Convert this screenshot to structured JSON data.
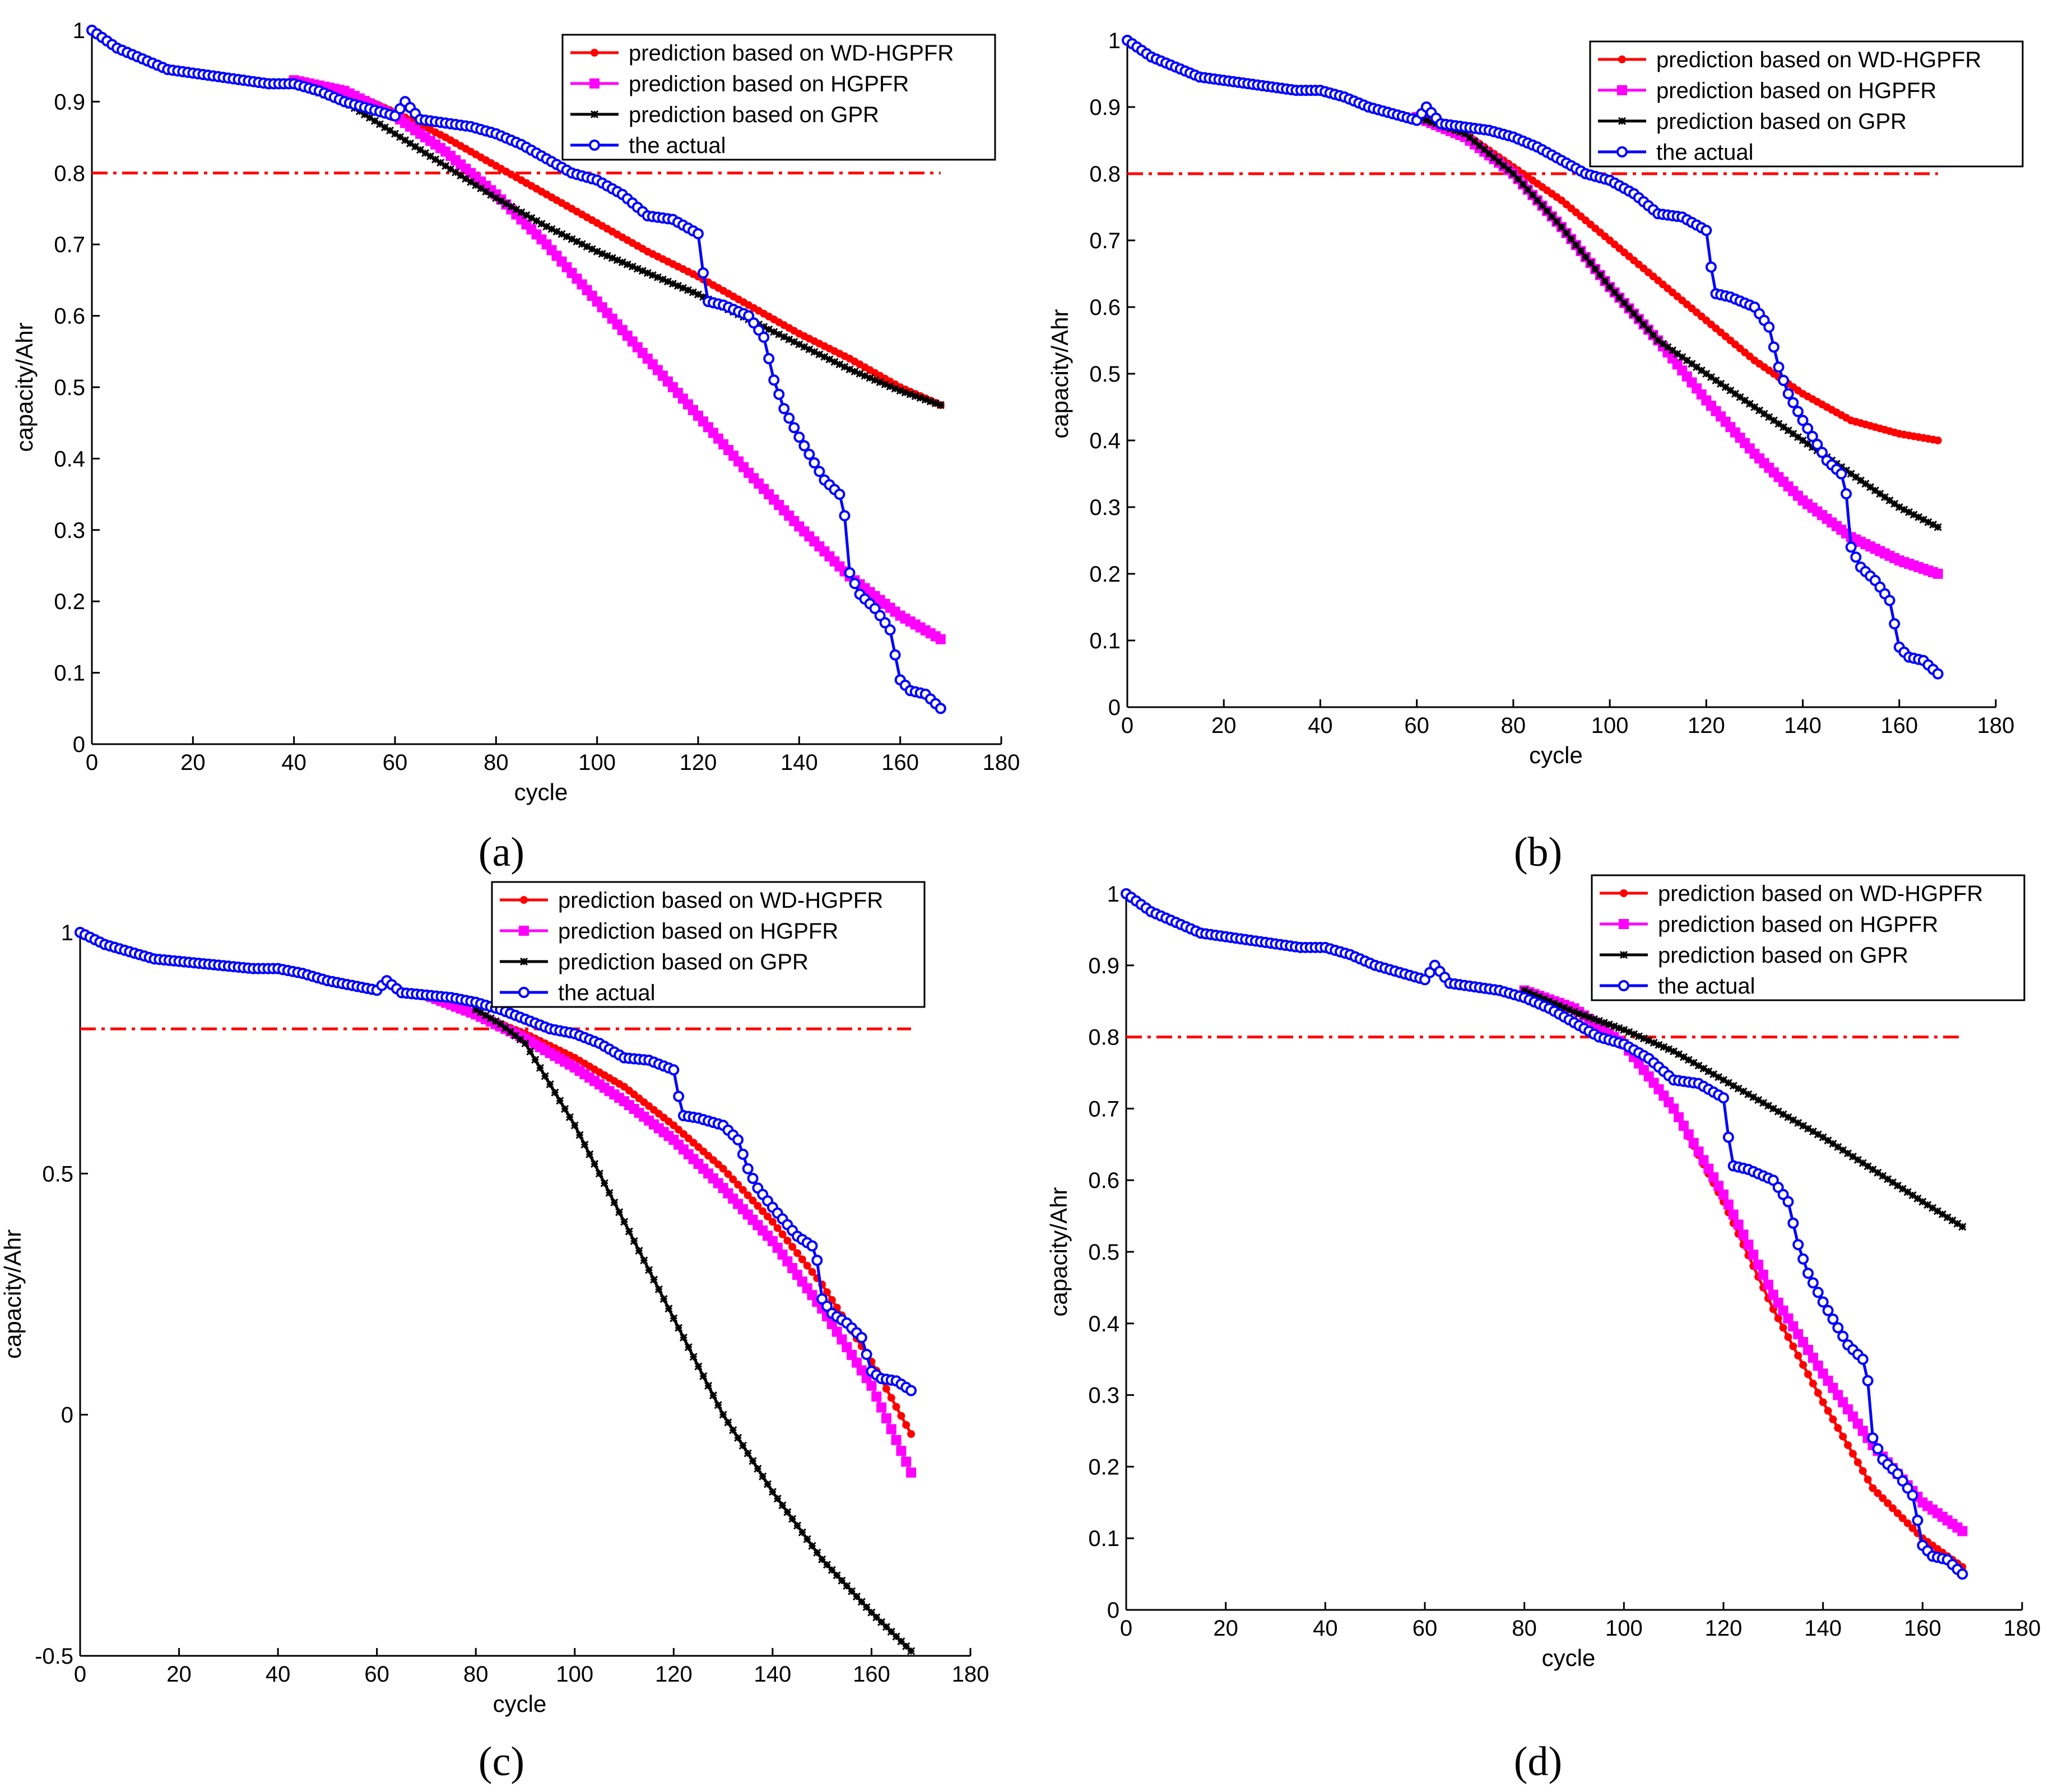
{
  "figure": {
    "panel_labels": [
      "(a)",
      "(b)",
      "(c)",
      "(d)"
    ]
  },
  "colors": {
    "wd_hgpfr": "#ff0000",
    "hgpfr": "#ff00ff",
    "gpr": "#000000",
    "actual": "#0000ff",
    "threshold": "#ff0000"
  },
  "chart_data": [
    {
      "panel": "(a)",
      "type": "line",
      "xlabel": "cycle",
      "ylabel": "capacity/Ahr",
      "xlim": [
        0,
        180
      ],
      "ylim": [
        0,
        1
      ],
      "xticks": [
        0,
        20,
        40,
        60,
        80,
        100,
        120,
        140,
        160,
        180
      ],
      "yticks": [
        0,
        0.1,
        0.2,
        0.3,
        0.4,
        0.5,
        0.6,
        0.7,
        0.8,
        0.9,
        1
      ],
      "ytick_labels": [
        "0",
        "0.1",
        "0.2",
        "0.3",
        "0.4",
        "0.5",
        "0.6",
        "0.7",
        "0.8",
        "0.9",
        "1"
      ],
      "threshold": {
        "y": 0.8,
        "x_range": [
          0,
          168
        ]
      },
      "legend_position": "top-right",
      "series": [
        {
          "key": "wd_hgpfr",
          "name": "prediction based on WD-HGPFR",
          "marker": "dot",
          "x": [
            40,
            50,
            60,
            70,
            80,
            90,
            100,
            110,
            120,
            130,
            140,
            150,
            160,
            168
          ],
          "y": [
            0.93,
            0.915,
            0.885,
            0.85,
            0.81,
            0.77,
            0.73,
            0.69,
            0.655,
            0.615,
            0.575,
            0.54,
            0.5,
            0.475
          ]
        },
        {
          "key": "hgpfr",
          "name": "prediction based on HGPFR",
          "marker": "square",
          "x": [
            40,
            50,
            60,
            70,
            80,
            90,
            100,
            110,
            120,
            130,
            140,
            150,
            160,
            168
          ],
          "y": [
            0.93,
            0.915,
            0.88,
            0.83,
            0.77,
            0.7,
            0.62,
            0.54,
            0.46,
            0.38,
            0.305,
            0.235,
            0.18,
            0.147
          ]
        },
        {
          "key": "gpr",
          "name": "prediction based on GPR",
          "marker": "star",
          "x": [
            40,
            50,
            60,
            70,
            80,
            90,
            100,
            110,
            120,
            130,
            140,
            150,
            160,
            168
          ],
          "y": [
            0.925,
            0.9,
            0.855,
            0.81,
            0.765,
            0.725,
            0.69,
            0.66,
            0.63,
            0.595,
            0.56,
            0.525,
            0.495,
            0.475
          ]
        },
        {
          "key": "actual",
          "name": "the actual",
          "marker": "circle",
          "x": [
            0,
            5,
            10,
            15,
            20,
            25,
            30,
            35,
            40,
            45,
            50,
            55,
            60,
            62,
            65,
            70,
            75,
            80,
            85,
            90,
            95,
            100,
            105,
            110,
            115,
            120,
            121,
            122,
            125,
            130,
            133,
            135,
            137,
            140,
            145,
            148,
            149,
            150,
            152,
            155,
            158,
            160,
            162,
            165,
            168
          ],
          "y": [
            1.0,
            0.975,
            0.96,
            0.945,
            0.94,
            0.935,
            0.93,
            0.925,
            0.925,
            0.915,
            0.9,
            0.89,
            0.88,
            0.9,
            0.875,
            0.87,
            0.865,
            0.855,
            0.84,
            0.82,
            0.8,
            0.79,
            0.77,
            0.74,
            0.735,
            0.715,
            0.66,
            0.62,
            0.615,
            0.6,
            0.57,
            0.51,
            0.47,
            0.43,
            0.37,
            0.35,
            0.32,
            0.24,
            0.21,
            0.19,
            0.16,
            0.09,
            0.075,
            0.07,
            0.05
          ]
        }
      ]
    },
    {
      "panel": "(b)",
      "type": "line",
      "xlabel": "cycle",
      "ylabel": "capacity/Ahr",
      "xlim": [
        0,
        180
      ],
      "ylim": [
        0,
        1
      ],
      "xticks": [
        0,
        20,
        40,
        60,
        80,
        100,
        120,
        140,
        160,
        180
      ],
      "yticks": [
        0,
        0.1,
        0.2,
        0.3,
        0.4,
        0.5,
        0.6,
        0.7,
        0.8,
        0.9,
        1
      ],
      "ytick_labels": [
        "0",
        "0.1",
        "0.2",
        "0.3",
        "0.4",
        "0.5",
        "0.6",
        "0.7",
        "0.8",
        "0.9",
        "1"
      ],
      "threshold": {
        "y": 0.8,
        "x_range": [
          0,
          168
        ]
      },
      "legend_position": "top-right",
      "series": [
        {
          "key": "wd_hgpfr",
          "name": "prediction based on WD-HGPFR",
          "marker": "dot",
          "x": [
            60,
            70,
            80,
            90,
            100,
            110,
            120,
            130,
            140,
            150,
            160,
            168
          ],
          "y": [
            0.885,
            0.86,
            0.81,
            0.76,
            0.7,
            0.64,
            0.58,
            0.52,
            0.47,
            0.43,
            0.41,
            0.4
          ]
        },
        {
          "key": "hgpfr",
          "name": "prediction based on HGPFR",
          "marker": "square",
          "x": [
            60,
            70,
            80,
            90,
            100,
            110,
            120,
            130,
            140,
            150,
            160,
            168
          ],
          "y": [
            0.885,
            0.855,
            0.8,
            0.72,
            0.63,
            0.55,
            0.46,
            0.38,
            0.31,
            0.255,
            0.22,
            0.2
          ]
        },
        {
          "key": "gpr",
          "name": "prediction based on GPR",
          "marker": "star",
          "x": [
            60,
            70,
            80,
            90,
            100,
            110,
            120,
            130,
            140,
            150,
            160,
            168
          ],
          "y": [
            0.885,
            0.86,
            0.8,
            0.72,
            0.63,
            0.55,
            0.5,
            0.45,
            0.4,
            0.35,
            0.3,
            0.27
          ]
        },
        {
          "key": "actual",
          "name": "the actual",
          "marker": "circle",
          "x": [
            0,
            5,
            10,
            15,
            20,
            25,
            30,
            35,
            40,
            45,
            50,
            55,
            60,
            62,
            65,
            70,
            75,
            80,
            85,
            90,
            95,
            100,
            105,
            110,
            115,
            120,
            121,
            122,
            125,
            130,
            133,
            135,
            137,
            140,
            145,
            148,
            149,
            150,
            152,
            155,
            158,
            160,
            162,
            165,
            168
          ],
          "y": [
            1.0,
            0.975,
            0.96,
            0.945,
            0.94,
            0.935,
            0.93,
            0.925,
            0.925,
            0.915,
            0.9,
            0.89,
            0.88,
            0.9,
            0.875,
            0.87,
            0.865,
            0.855,
            0.84,
            0.82,
            0.8,
            0.79,
            0.77,
            0.74,
            0.735,
            0.715,
            0.66,
            0.62,
            0.615,
            0.6,
            0.57,
            0.51,
            0.47,
            0.43,
            0.37,
            0.35,
            0.32,
            0.24,
            0.21,
            0.19,
            0.16,
            0.09,
            0.075,
            0.07,
            0.05
          ]
        }
      ]
    },
    {
      "panel": "(c)",
      "type": "line",
      "xlabel": "cycle",
      "ylabel": "capacity/Ahr",
      "xlim": [
        0,
        180
      ],
      "ylim": [
        -0.5,
        1
      ],
      "xticks": [
        0,
        20,
        40,
        60,
        80,
        100,
        120,
        140,
        160,
        180
      ],
      "yticks": [
        -0.5,
        0,
        0.5,
        1
      ],
      "ytick_labels": [
        "-0.5",
        "0",
        "0.5",
        "1"
      ],
      "threshold": {
        "y": 0.8,
        "x_range": [
          0,
          168
        ]
      },
      "legend_position": "top-right",
      "series": [
        {
          "key": "wd_hgpfr",
          "name": "prediction based on WD-HGPFR",
          "marker": "dot",
          "x": [
            70,
            80,
            90,
            100,
            110,
            120,
            130,
            140,
            150,
            160,
            168
          ],
          "y": [
            0.87,
            0.83,
            0.79,
            0.74,
            0.68,
            0.6,
            0.51,
            0.4,
            0.27,
            0.11,
            -0.04
          ]
        },
        {
          "key": "hgpfr",
          "name": "prediction based on HGPFR",
          "marker": "square",
          "x": [
            70,
            80,
            90,
            100,
            110,
            120,
            130,
            140,
            150,
            160,
            168
          ],
          "y": [
            0.87,
            0.83,
            0.78,
            0.72,
            0.65,
            0.57,
            0.47,
            0.36,
            0.22,
            0.06,
            -0.12
          ]
        },
        {
          "key": "gpr",
          "name": "prediction based on GPR",
          "marker": "star",
          "x": [
            80,
            85,
            90,
            100,
            110,
            120,
            130,
            140,
            150,
            160,
            168
          ],
          "y": [
            0.84,
            0.81,
            0.77,
            0.6,
            0.4,
            0.2,
            0.0,
            -0.16,
            -0.3,
            -0.41,
            -0.49
          ]
        },
        {
          "key": "actual",
          "name": "the actual",
          "marker": "circle",
          "x": [
            0,
            5,
            10,
            15,
            20,
            25,
            30,
            35,
            40,
            45,
            50,
            55,
            60,
            62,
            65,
            70,
            75,
            80,
            85,
            90,
            95,
            100,
            105,
            110,
            115,
            120,
            121,
            122,
            125,
            130,
            133,
            135,
            137,
            140,
            145,
            148,
            149,
            150,
            152,
            155,
            158,
            160,
            162,
            165,
            168
          ],
          "y": [
            1.0,
            0.975,
            0.96,
            0.945,
            0.94,
            0.935,
            0.93,
            0.925,
            0.925,
            0.915,
            0.9,
            0.89,
            0.88,
            0.9,
            0.875,
            0.87,
            0.865,
            0.855,
            0.84,
            0.82,
            0.8,
            0.79,
            0.77,
            0.74,
            0.735,
            0.715,
            0.66,
            0.62,
            0.615,
            0.6,
            0.57,
            0.51,
            0.47,
            0.43,
            0.37,
            0.35,
            0.32,
            0.24,
            0.21,
            0.19,
            0.16,
            0.09,
            0.075,
            0.07,
            0.05
          ]
        }
      ]
    },
    {
      "panel": "(d)",
      "type": "line",
      "xlabel": "cycle",
      "ylabel": "capacity/Ahr",
      "xlim": [
        0,
        180
      ],
      "ylim": [
        0,
        1
      ],
      "xticks": [
        0,
        20,
        40,
        60,
        80,
        100,
        120,
        140,
        160,
        180
      ],
      "yticks": [
        0,
        0.1,
        0.2,
        0.3,
        0.4,
        0.5,
        0.6,
        0.7,
        0.8,
        0.9,
        1
      ],
      "ytick_labels": [
        "0",
        "0.1",
        "0.2",
        "0.3",
        "0.4",
        "0.5",
        "0.6",
        "0.7",
        "0.8",
        "0.9",
        "1"
      ],
      "threshold": {
        "y": 0.8,
        "x_range": [
          0,
          168
        ]
      },
      "legend_position": "top-right",
      "series": [
        {
          "key": "wd_hgpfr",
          "name": "prediction based on WD-HGPFR",
          "marker": "dot",
          "x": [
            80,
            90,
            100,
            110,
            120,
            130,
            140,
            150,
            160,
            168
          ],
          "y": [
            0.865,
            0.84,
            0.79,
            0.7,
            0.57,
            0.42,
            0.29,
            0.17,
            0.1,
            0.06
          ]
        },
        {
          "key": "hgpfr",
          "name": "prediction based on HGPFR",
          "marker": "square",
          "x": [
            80,
            90,
            100,
            110,
            120,
            130,
            140,
            150,
            160,
            168
          ],
          "y": [
            0.865,
            0.84,
            0.79,
            0.7,
            0.58,
            0.44,
            0.33,
            0.23,
            0.15,
            0.11
          ]
        },
        {
          "key": "gpr",
          "name": "prediction based on GPR",
          "marker": "star",
          "x": [
            80,
            90,
            100,
            110,
            120,
            130,
            140,
            150,
            160,
            168
          ],
          "y": [
            0.865,
            0.835,
            0.81,
            0.78,
            0.74,
            0.7,
            0.66,
            0.615,
            0.57,
            0.535
          ]
        },
        {
          "key": "actual",
          "name": "the actual",
          "marker": "circle",
          "x": [
            0,
            5,
            10,
            15,
            20,
            25,
            30,
            35,
            40,
            45,
            50,
            55,
            60,
            62,
            65,
            70,
            75,
            80,
            85,
            90,
            95,
            100,
            105,
            110,
            115,
            120,
            121,
            122,
            125,
            130,
            133,
            135,
            137,
            140,
            145,
            148,
            149,
            150,
            152,
            155,
            158,
            160,
            162,
            165,
            168
          ],
          "y": [
            1.0,
            0.975,
            0.96,
            0.945,
            0.94,
            0.935,
            0.93,
            0.925,
            0.925,
            0.915,
            0.9,
            0.89,
            0.88,
            0.9,
            0.875,
            0.87,
            0.865,
            0.855,
            0.84,
            0.82,
            0.8,
            0.79,
            0.77,
            0.74,
            0.735,
            0.715,
            0.66,
            0.62,
            0.615,
            0.6,
            0.57,
            0.51,
            0.47,
            0.43,
            0.37,
            0.35,
            0.32,
            0.24,
            0.21,
            0.19,
            0.16,
            0.09,
            0.075,
            0.07,
            0.05
          ]
        }
      ]
    }
  ]
}
